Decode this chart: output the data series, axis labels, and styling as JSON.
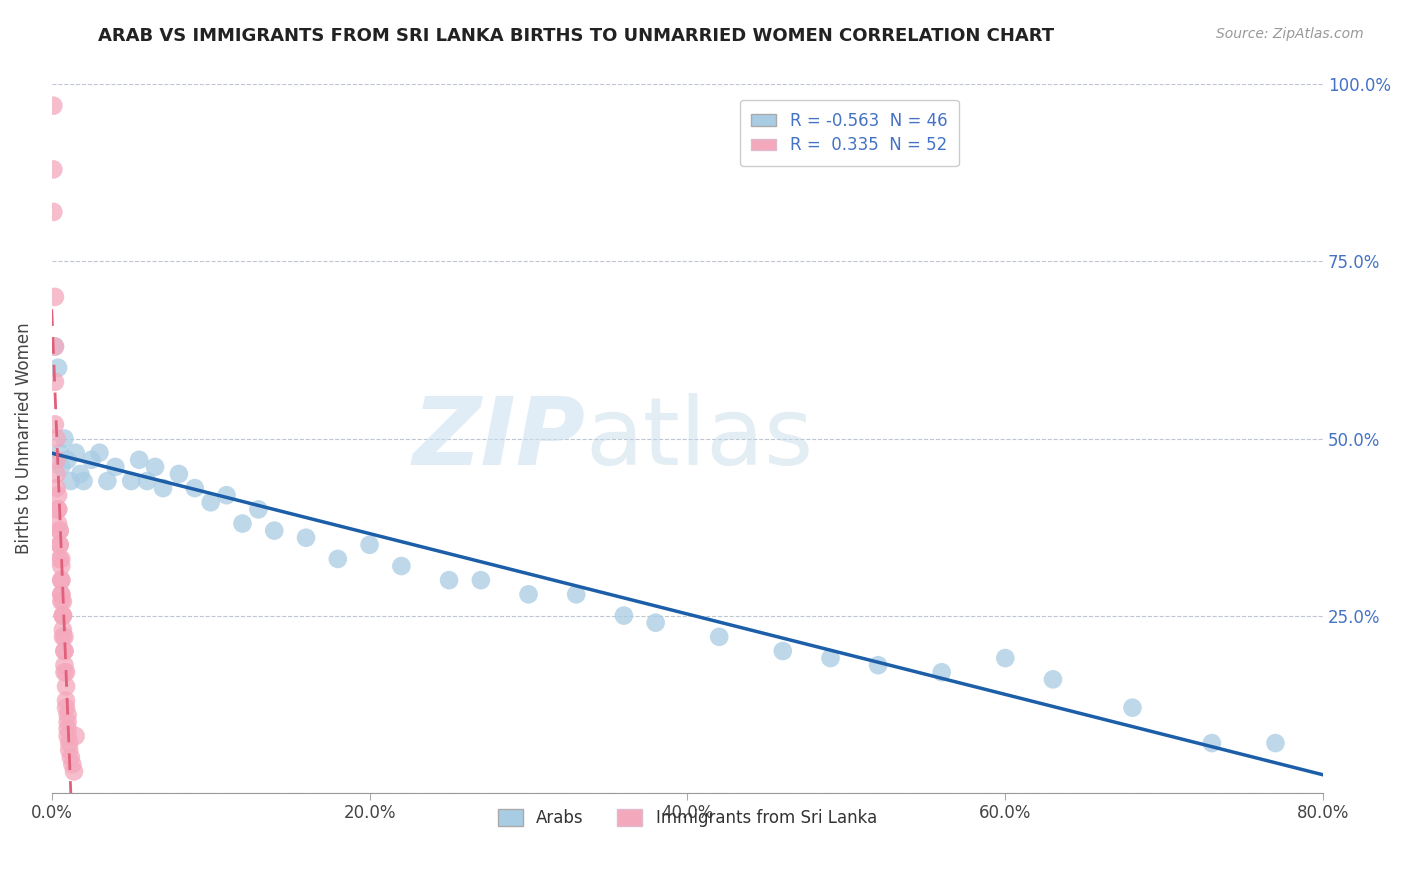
{
  "title": "ARAB VS IMMIGRANTS FROM SRI LANKA BIRTHS TO UNMARRIED WOMEN CORRELATION CHART",
  "source": "Source: ZipAtlas.com",
  "ylabel": "Births to Unmarried Women",
  "r_arab": -0.563,
  "n_arab": 46,
  "r_srilanka": 0.335,
  "n_srilanka": 52,
  "xlim": [
    0.0,
    0.8
  ],
  "ylim": [
    0.0,
    1.0
  ],
  "xticks": [
    0.0,
    0.2,
    0.4,
    0.6,
    0.8
  ],
  "xtick_labels": [
    "0.0%",
    "20.0%",
    "40.0%",
    "60.0%",
    "80.0%"
  ],
  "yticks": [
    0.0,
    0.25,
    0.5,
    0.75,
    1.0
  ],
  "ytick_labels": [
    "",
    "25.0%",
    "50.0%",
    "75.0%",
    "100.0%"
  ],
  "color_arab": "#a8cce4",
  "color_srilanka": "#f4a8bc",
  "trendline_arab": "#1c5fa8",
  "trendline_srilanka": "#e0607a",
  "watermark_zip": "ZIP",
  "watermark_atlas": "atlas",
  "background_color": "#ffffff",
  "arab_x": [
    0.002,
    0.004,
    0.005,
    0.006,
    0.008,
    0.01,
    0.012,
    0.015,
    0.018,
    0.02,
    0.025,
    0.03,
    0.035,
    0.04,
    0.05,
    0.055,
    0.06,
    0.065,
    0.07,
    0.08,
    0.09,
    0.1,
    0.11,
    0.12,
    0.13,
    0.14,
    0.16,
    0.18,
    0.2,
    0.22,
    0.25,
    0.27,
    0.3,
    0.33,
    0.36,
    0.38,
    0.42,
    0.46,
    0.49,
    0.52,
    0.56,
    0.6,
    0.63,
    0.68,
    0.73,
    0.77
  ],
  "arab_y": [
    0.63,
    0.6,
    0.48,
    0.46,
    0.5,
    0.47,
    0.44,
    0.48,
    0.45,
    0.44,
    0.47,
    0.48,
    0.44,
    0.46,
    0.44,
    0.47,
    0.44,
    0.46,
    0.43,
    0.45,
    0.43,
    0.41,
    0.42,
    0.38,
    0.4,
    0.37,
    0.36,
    0.33,
    0.35,
    0.32,
    0.3,
    0.3,
    0.28,
    0.28,
    0.25,
    0.24,
    0.22,
    0.2,
    0.19,
    0.18,
    0.17,
    0.19,
    0.16,
    0.12,
    0.07,
    0.07
  ],
  "srilanka_x": [
    0.001,
    0.001,
    0.001,
    0.002,
    0.002,
    0.002,
    0.002,
    0.003,
    0.003,
    0.003,
    0.003,
    0.004,
    0.004,
    0.004,
    0.004,
    0.005,
    0.005,
    0.005,
    0.005,
    0.005,
    0.006,
    0.006,
    0.006,
    0.006,
    0.006,
    0.006,
    0.006,
    0.007,
    0.007,
    0.007,
    0.007,
    0.007,
    0.007,
    0.008,
    0.008,
    0.008,
    0.008,
    0.008,
    0.009,
    0.009,
    0.009,
    0.009,
    0.01,
    0.01,
    0.01,
    0.01,
    0.011,
    0.011,
    0.012,
    0.013,
    0.014,
    0.015
  ],
  "srilanka_y": [
    0.97,
    0.88,
    0.82,
    0.7,
    0.63,
    0.58,
    0.52,
    0.5,
    0.47,
    0.45,
    0.43,
    0.42,
    0.4,
    0.4,
    0.38,
    0.37,
    0.37,
    0.35,
    0.35,
    0.33,
    0.33,
    0.32,
    0.3,
    0.3,
    0.28,
    0.28,
    0.27,
    0.27,
    0.25,
    0.25,
    0.25,
    0.23,
    0.22,
    0.22,
    0.2,
    0.2,
    0.18,
    0.17,
    0.17,
    0.15,
    0.13,
    0.12,
    0.11,
    0.1,
    0.09,
    0.08,
    0.07,
    0.06,
    0.05,
    0.04,
    0.03,
    0.08
  ]
}
